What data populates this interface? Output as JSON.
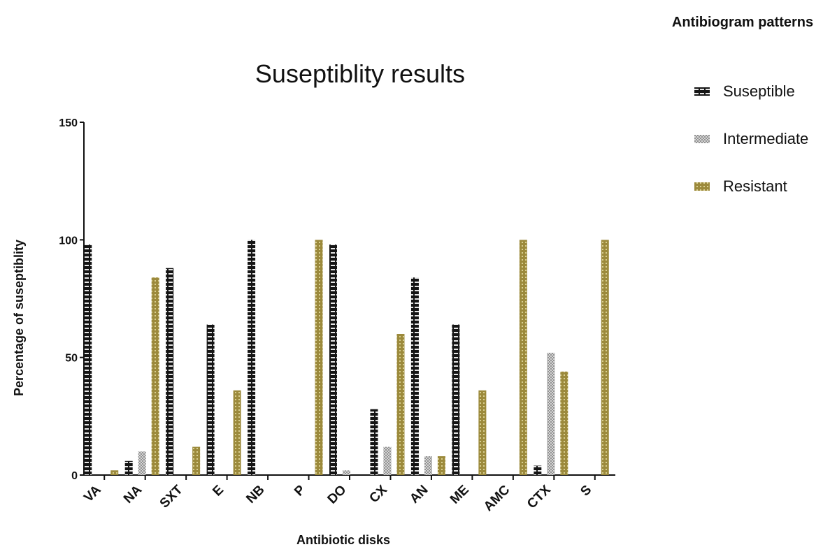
{
  "chart_data": {
    "type": "bar",
    "title": "Suseptiblity results",
    "xlabel": "Antibiotic disks",
    "ylabel": "Percentage of suseptiblity",
    "ylim": [
      0,
      150
    ],
    "yticks": [
      0,
      50,
      100,
      150
    ],
    "categories": [
      "VA",
      "NA",
      "SXT",
      "E",
      "NB",
      "P",
      "DO",
      "CX",
      "AN",
      "ME",
      "AMC",
      "CTX",
      "S"
    ],
    "legend_title": "Antibiogram patterns",
    "legend_position": "right",
    "grid": false,
    "series": [
      {
        "name": "Suseptible",
        "color": "#222222",
        "pattern": "bricks-dark",
        "values": [
          98,
          6,
          88,
          64,
          100,
          0,
          98,
          28,
          84,
          64,
          0,
          4,
          0
        ]
      },
      {
        "name": "Intermediate",
        "color": "#b0b0b0",
        "pattern": "crosshatch-light",
        "values": [
          0,
          10,
          0,
          0,
          0,
          0,
          2,
          12,
          8,
          0,
          0,
          52,
          0
        ]
      },
      {
        "name": "Resistant",
        "color": "#9c8a3c",
        "pattern": "dotted-olive",
        "values": [
          2,
          84,
          12,
          36,
          0,
          100,
          0,
          60,
          8,
          36,
          100,
          44,
          100
        ]
      }
    ]
  }
}
